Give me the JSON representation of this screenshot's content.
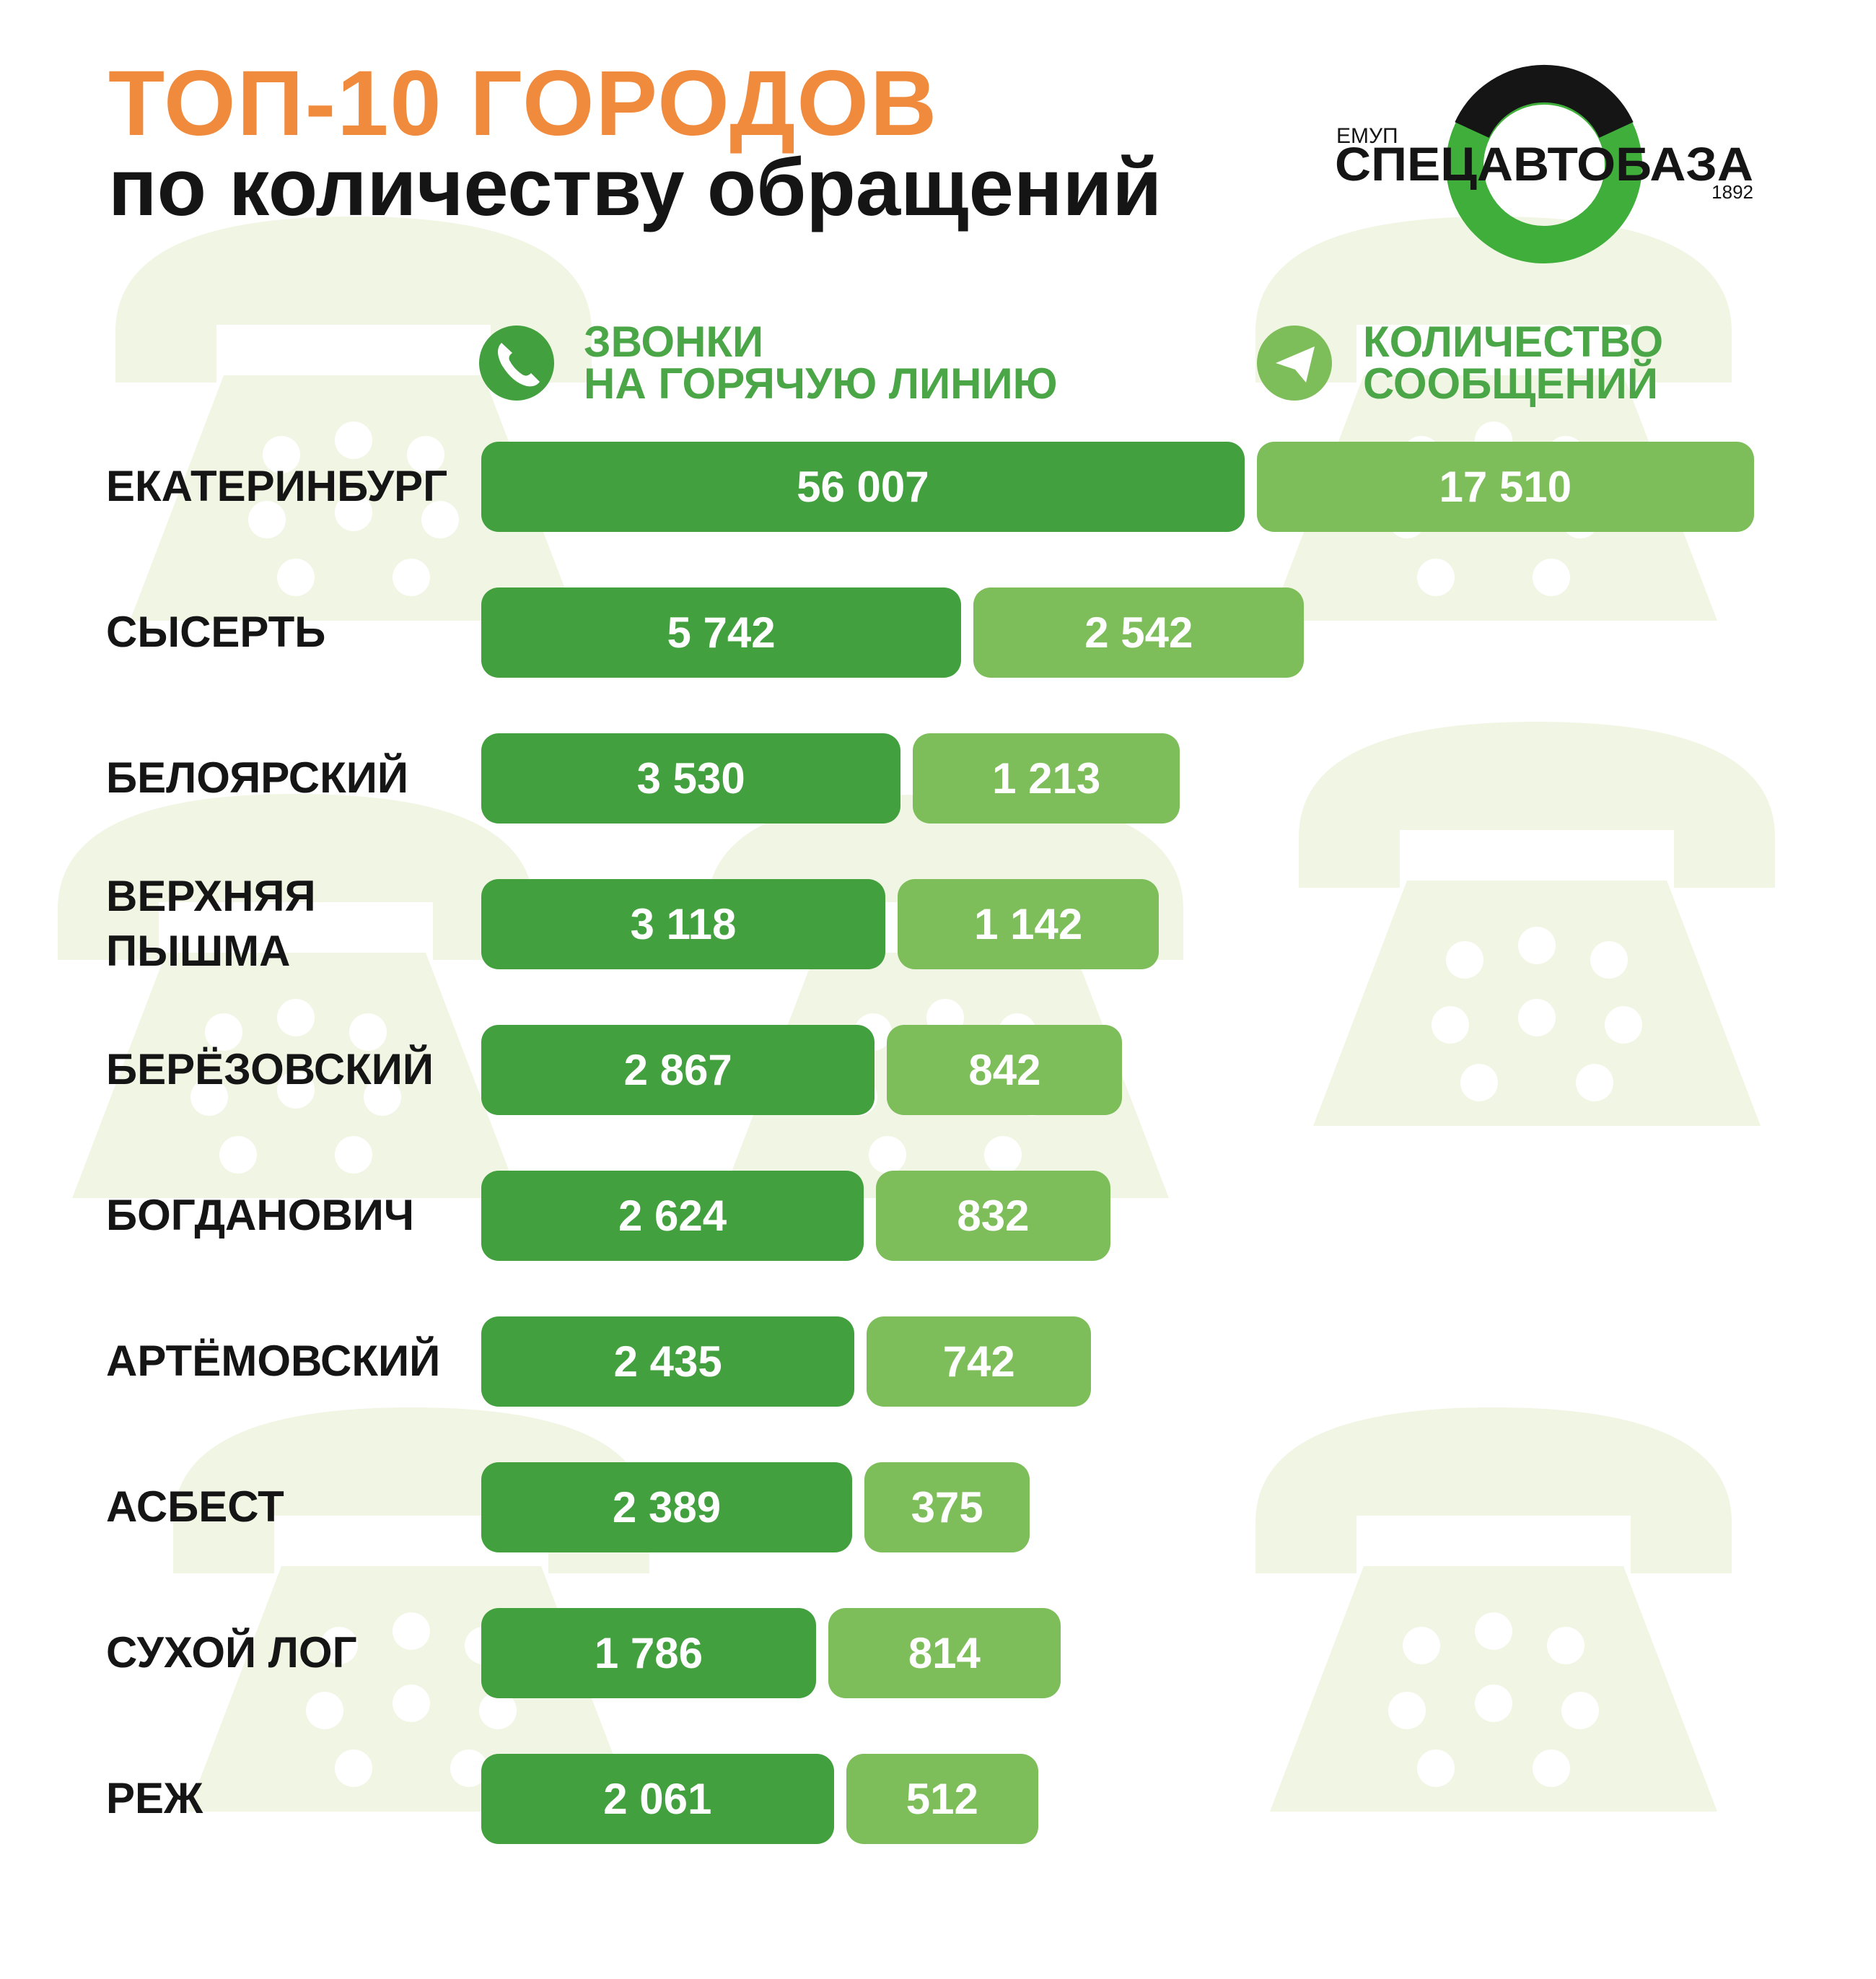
{
  "chart_data": {
    "type": "bar",
    "title": "ТОП-10 ГОРОДОВ",
    "subtitle": "по количеству обращений",
    "logo": {
      "prefix": "ЕМУП",
      "name": "СПЕЦАВТОБАЗА",
      "year": "1892"
    },
    "categories": [
      "ЕКАТЕРИНБУРГ",
      "СЫСЕРТЬ",
      "БЕЛОЯРСКИЙ",
      "ВЕРХНЯЯ\nПЫШМА",
      "БЕРЁЗОВСКИЙ",
      "БОГДАНОВИЧ",
      "АРТЁМОВСКИЙ",
      "АСБЕСТ",
      "СУХОЙ ЛОГ",
      "РЕЖ"
    ],
    "series": [
      {
        "name": "ЗВОНКИ\nНА ГОРЯЧУЮ ЛИНИЮ",
        "color": "#43a03f",
        "values": [
          56007,
          5742,
          3530,
          3118,
          2867,
          2624,
          2435,
          2389,
          1786,
          2061
        ],
        "value_labels": [
          "56 007",
          "5 742",
          "3 530",
          "3 118",
          "2 867",
          "2 624",
          "2 435",
          "2 389",
          "1 786",
          "2 061"
        ]
      },
      {
        "name": "КОЛИЧЕСТВО\nСООБЩЕНИЙ",
        "color": "#7dbe5a",
        "values": [
          17510,
          2542,
          1213,
          1142,
          842,
          832,
          742,
          375,
          814,
          512
        ],
        "value_labels": [
          "17 510",
          "2 542",
          "1 213",
          "1 142",
          "842",
          "832",
          "742",
          "375",
          "814",
          "512"
        ]
      }
    ]
  }
}
